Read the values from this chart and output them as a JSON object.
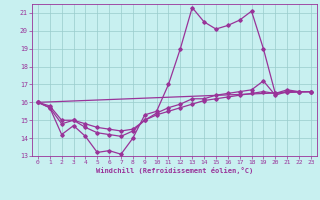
{
  "xlabel": "Windchill (Refroidissement éolien,°C)",
  "xlim": [
    -0.5,
    23.5
  ],
  "ylim": [
    13,
    21.5
  ],
  "yticks": [
    13,
    14,
    15,
    16,
    17,
    18,
    19,
    20,
    21
  ],
  "xticks": [
    0,
    1,
    2,
    3,
    4,
    5,
    6,
    7,
    8,
    9,
    10,
    11,
    12,
    13,
    14,
    15,
    16,
    17,
    18,
    19,
    20,
    21,
    22,
    23
  ],
  "background_color": "#c8f0f0",
  "grid_color": "#99cccc",
  "line_color": "#993399",
  "line1_y": [
    16.0,
    15.7,
    14.2,
    14.7,
    14.1,
    13.2,
    13.3,
    13.1,
    14.0,
    15.3,
    15.5,
    17.0,
    19.0,
    21.3,
    20.5,
    20.1,
    20.3,
    20.6,
    21.1,
    19.0,
    16.5,
    16.7,
    16.6,
    16.6
  ],
  "line2_y": [
    16.0,
    15.8,
    15.0,
    15.0,
    14.8,
    14.6,
    14.5,
    14.4,
    14.5,
    15.0,
    15.3,
    15.5,
    15.7,
    15.9,
    16.1,
    16.2,
    16.3,
    16.4,
    16.5,
    16.6,
    16.5,
    16.6,
    16.6,
    16.6
  ],
  "line3_y": [
    16.0,
    15.7,
    14.8,
    15.0,
    14.6,
    14.3,
    14.2,
    14.1,
    14.4,
    15.0,
    15.4,
    15.7,
    15.9,
    16.2,
    16.2,
    16.4,
    16.5,
    16.6,
    16.7,
    17.2,
    16.4,
    16.6,
    16.6,
    16.6
  ],
  "line4_x": [
    0,
    23
  ],
  "line4_y": [
    16.0,
    16.6
  ],
  "tick_fontsize": 4.5,
  "xlabel_fontsize": 5.0
}
